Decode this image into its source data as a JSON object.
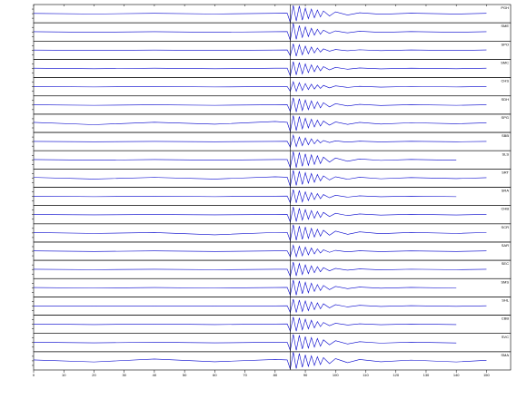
{
  "chart_data": {
    "type": "line",
    "x": [
      0,
      20,
      40,
      60,
      80,
      84,
      85,
      86,
      87,
      88,
      89,
      90,
      91,
      92,
      93,
      94,
      95,
      96,
      98,
      100,
      104,
      108,
      115,
      125,
      140,
      150
    ],
    "xlim": [
      0,
      158
    ],
    "xticks": [
      0,
      10,
      20,
      30,
      40,
      50,
      60,
      70,
      80,
      90,
      100,
      110,
      120,
      130,
      140,
      150
    ],
    "ylim": [
      -1,
      1
    ],
    "vline": 85,
    "color": "#0000cc",
    "series": [
      {
        "name": "PGH",
        "values": [
          0.03,
          -0.03,
          0.04,
          -0.03,
          0.04,
          0.05,
          -0.95,
          0.9,
          -0.8,
          0.85,
          -0.7,
          0.6,
          -0.55,
          0.5,
          -0.45,
          0.4,
          -0.35,
          0.3,
          -0.25,
          0.2,
          -0.15,
          0.1,
          -0.06,
          0.05,
          -0.04,
          0.04
        ]
      },
      {
        "name": "SME",
        "values": [
          0.03,
          -0.03,
          0.03,
          -0.03,
          0.03,
          0.04,
          -0.9,
          0.95,
          -0.8,
          0.7,
          -0.6,
          0.55,
          -0.5,
          0.4,
          -0.35,
          0.3,
          -0.25,
          0.2,
          -0.15,
          0.12,
          -0.1,
          0.08,
          -0.05,
          0.04,
          -0.03,
          0.03
        ]
      },
      {
        "name": "SPO",
        "values": [
          0.02,
          -0.02,
          0.02,
          -0.02,
          0.02,
          0.03,
          -0.6,
          0.7,
          -0.65,
          0.6,
          -0.5,
          0.45,
          -0.4,
          0.35,
          -0.3,
          0.25,
          -0.2,
          0.15,
          -0.1,
          0.08,
          -0.06,
          0.05,
          -0.04,
          0.03,
          -0.03,
          0.03
        ]
      },
      {
        "name": "SMC",
        "values": [
          0.03,
          -0.03,
          0.03,
          -0.03,
          0.03,
          0.04,
          -0.8,
          0.75,
          -0.7,
          0.65,
          -0.6,
          0.5,
          -0.45,
          0.4,
          -0.35,
          0.3,
          -0.25,
          0.2,
          -0.15,
          0.12,
          -0.08,
          0.06,
          -0.04,
          0.03,
          -0.03,
          0.03
        ]
      },
      {
        "name": "CHS",
        "values": [
          0.02,
          -0.02,
          0.02,
          -0.02,
          0.02,
          0.03,
          -0.5,
          0.55,
          -0.5,
          0.45,
          -0.4,
          0.35,
          -0.3,
          0.28,
          -0.25,
          0.2,
          -0.18,
          0.15,
          -0.12,
          0.1,
          -0.07,
          0.05,
          -0.04,
          0.03,
          -0.02,
          0.02
        ]
      },
      {
        "name": "SDH",
        "values": [
          0.03,
          -0.03,
          0.03,
          -0.03,
          0.03,
          0.04,
          -0.7,
          0.8,
          -0.75,
          0.7,
          -0.6,
          0.55,
          -0.5,
          0.45,
          -0.4,
          0.35,
          -0.3,
          0.25,
          -0.2,
          0.15,
          -0.1,
          0.08,
          -0.05,
          0.04,
          -0.03,
          0.03
        ]
      },
      {
        "name": "SPG",
        "values": [
          0.1,
          -0.15,
          0.12,
          -0.1,
          0.2,
          0.1,
          -0.9,
          0.85,
          -0.8,
          0.75,
          -0.6,
          0.55,
          -0.5,
          0.45,
          -0.4,
          0.35,
          -0.3,
          0.25,
          -0.2,
          0.15,
          -0.12,
          0.1,
          -0.08,
          0.06,
          -0.05,
          0.05
        ]
      },
      {
        "name": "SBB",
        "values": [
          0.02,
          -0.02,
          0.02,
          -0.02,
          0.02,
          0.03,
          -0.6,
          0.7,
          -0.55,
          0.5,
          -0.45,
          0.4,
          -0.35,
          0.3,
          -0.25,
          0.2,
          -0.15,
          0.12,
          -0.1,
          0.08,
          -0.06,
          0.04,
          -0.03,
          0.03,
          -0.02,
          0.02
        ]
      },
      {
        "name": "SLS",
        "values": [
          0.03,
          -0.03,
          0.03,
          -0.03,
          0.03,
          0.04,
          -0.85,
          0.9,
          -0.85,
          0.8,
          -0.7,
          0.65,
          -0.6,
          0.55,
          -0.5,
          0.45,
          -0.4,
          0.3,
          -0.25,
          0.2,
          -0.15,
          0.1,
          -0.06,
          0.05,
          -0.04,
          null
        ]
      },
      {
        "name": "SRT",
        "values": [
          0.08,
          -0.1,
          0.08,
          -0.1,
          0.15,
          0.1,
          -0.9,
          0.85,
          -0.8,
          0.75,
          -0.7,
          0.6,
          -0.55,
          0.5,
          -0.45,
          0.4,
          -0.3,
          0.25,
          -0.2,
          0.15,
          -0.12,
          0.1,
          -0.07,
          0.06,
          -0.05,
          0.05
        ]
      },
      {
        "name": "SRA",
        "values": [
          0.03,
          -0.03,
          0.03,
          -0.03,
          0.03,
          0.04,
          -0.7,
          0.75,
          -0.7,
          0.65,
          -0.6,
          0.5,
          -0.45,
          0.4,
          -0.35,
          0.3,
          -0.25,
          0.2,
          -0.15,
          0.12,
          -0.08,
          0.06,
          -0.04,
          0.03,
          -0.03,
          null
        ]
      },
      {
        "name": "CHB",
        "values": [
          0.02,
          -0.02,
          0.02,
          -0.02,
          0.02,
          0.03,
          -0.8,
          0.85,
          -0.75,
          0.7,
          -0.6,
          0.55,
          -0.5,
          0.45,
          -0.4,
          0.35,
          -0.3,
          0.25,
          -0.2,
          0.15,
          -0.1,
          0.08,
          -0.05,
          0.04,
          -0.03,
          0.03
        ]
      },
      {
        "name": "SCR",
        "values": [
          0.04,
          -0.05,
          0.04,
          -0.2,
          0.05,
          0.06,
          -0.85,
          0.9,
          -0.8,
          0.75,
          -0.7,
          0.65,
          -0.6,
          0.5,
          -0.45,
          0.4,
          -0.35,
          0.3,
          -0.25,
          0.2,
          -0.15,
          0.12,
          -0.08,
          0.06,
          -0.05,
          0.05
        ]
      },
      {
        "name": "SAR",
        "values": [
          0.03,
          -0.03,
          0.03,
          -0.03,
          0.03,
          0.04,
          -0.6,
          0.65,
          -0.6,
          0.55,
          -0.5,
          0.45,
          -0.4,
          0.35,
          -0.3,
          0.25,
          -0.2,
          0.15,
          -0.12,
          0.1,
          -0.07,
          0.05,
          -0.04,
          0.03,
          -0.03,
          0.03
        ]
      },
      {
        "name": "SEC",
        "values": [
          0.02,
          -0.02,
          0.02,
          -0.02,
          0.02,
          0.03,
          -0.75,
          0.8,
          -0.7,
          0.65,
          -0.55,
          0.5,
          -0.45,
          0.4,
          -0.35,
          0.3,
          -0.25,
          0.2,
          -0.15,
          0.12,
          -0.08,
          0.06,
          -0.04,
          0.03,
          -0.02,
          0.02
        ]
      },
      {
        "name": "SMS",
        "values": [
          0.03,
          -0.03,
          0.03,
          -0.03,
          0.03,
          0.04,
          -0.8,
          0.85,
          -0.8,
          0.75,
          -0.65,
          0.6,
          -0.55,
          0.5,
          -0.4,
          0.35,
          -0.3,
          0.25,
          -0.2,
          0.15,
          -0.1,
          0.08,
          -0.05,
          0.04,
          -0.03,
          null
        ]
      },
      {
        "name": "SHL",
        "values": [
          0.02,
          -0.02,
          0.02,
          -0.02,
          0.02,
          0.03,
          -0.7,
          0.75,
          -0.7,
          0.65,
          -0.6,
          0.55,
          -0.5,
          0.45,
          -0.4,
          0.35,
          -0.3,
          0.25,
          -0.2,
          0.15,
          -0.1,
          0.08,
          -0.05,
          0.04,
          -0.03,
          0.03
        ]
      },
      {
        "name": "CBB",
        "values": [
          0.03,
          -0.03,
          0.03,
          -0.03,
          0.03,
          0.04,
          -0.75,
          0.8,
          -0.75,
          0.7,
          -0.6,
          0.55,
          -0.5,
          0.45,
          -0.4,
          0.3,
          -0.25,
          0.2,
          -0.15,
          0.12,
          -0.08,
          0.06,
          -0.04,
          0.03,
          -0.03,
          null
        ]
      },
      {
        "name": "SVC",
        "values": [
          0.03,
          -0.03,
          0.03,
          -0.03,
          0.03,
          0.04,
          -0.85,
          0.9,
          -0.85,
          0.8,
          -0.7,
          0.65,
          -0.6,
          0.55,
          -0.5,
          0.45,
          -0.4,
          0.3,
          -0.25,
          0.2,
          -0.15,
          0.1,
          -0.06,
          0.05,
          -0.04,
          null
        ]
      },
      {
        "name": "SMA",
        "values": [
          0.1,
          -0.12,
          0.2,
          -0.1,
          0.15,
          0.1,
          -0.9,
          0.95,
          -0.85,
          0.8,
          -0.7,
          0.65,
          -0.6,
          0.55,
          -0.5,
          0.45,
          -0.4,
          0.35,
          -0.3,
          0.25,
          -0.2,
          0.15,
          -0.1,
          0.08,
          -0.12,
          0.06
        ]
      }
    ]
  }
}
